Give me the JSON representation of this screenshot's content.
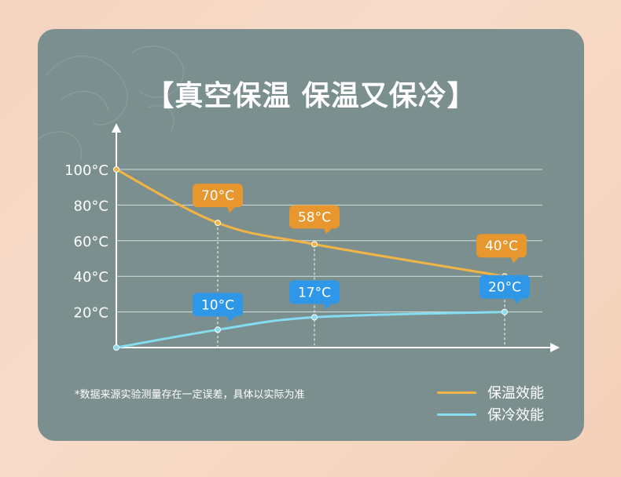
{
  "title": "【真空保温 保温又保冷】",
  "note": "*数据来源实验测量存在一定误差，具体以实际为准",
  "colors": {
    "hot": "#f2b545",
    "cold": "#86dcf0",
    "hot_badge": "#e8962e",
    "cold_badge": "#2f97e8"
  },
  "chart_data": {
    "type": "line",
    "y_ticks": [
      "100°C",
      "80°C",
      "60°C",
      "40°C",
      "20°C"
    ],
    "y_tick_values": [
      100,
      80,
      60,
      40,
      20
    ],
    "ylim": [
      0,
      100
    ],
    "grid": true,
    "legend_position": "bottom-right",
    "series": [
      {
        "name": "保温效能",
        "points": [
          [
            0,
            100
          ],
          [
            1,
            70
          ],
          [
            2,
            58
          ],
          [
            3,
            40
          ]
        ],
        "labels": [
          "",
          "70°C",
          "58°C",
          "40°C"
        ]
      },
      {
        "name": "保冷效能",
        "points": [
          [
            0,
            0
          ],
          [
            1,
            10
          ],
          [
            2,
            17
          ],
          [
            3,
            20
          ]
        ],
        "labels": [
          "",
          "10°C",
          "17°C",
          "20°C"
        ]
      }
    ]
  }
}
